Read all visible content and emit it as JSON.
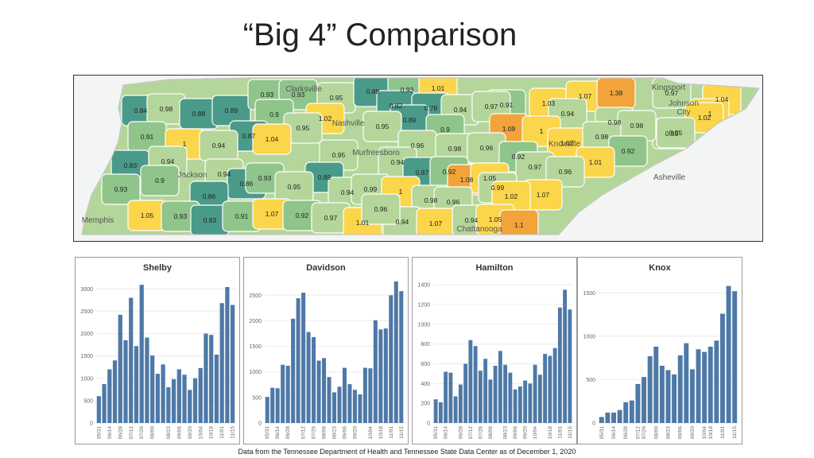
{
  "title": "“Big 4” Comparison",
  "footnote": "Data from the Tennessee Department of Health and Tennessee State Data Center as of December 1, 2020",
  "colors": {
    "bar": "#4e79a7",
    "map_teal": "#4a9a8a",
    "map_green": "#8fc48a",
    "map_lightgreen": "#b4d69a",
    "map_yellow": "#fbd54a",
    "map_orange": "#f2a33a",
    "map_background": "#f3f4f4"
  },
  "map": {
    "cities": [
      "Clarksville",
      "Nashville",
      "Murfreesboro",
      "Jackson",
      "Memphis",
      "Chattanooga",
      "Knoxville",
      "Kingsport",
      "Johnson City",
      "Asheville"
    ],
    "county_values": [
      "0.84",
      "0.98",
      "0.88",
      "0.89",
      "0.93",
      "0.93",
      "0.95",
      "0.88",
      "0.93",
      "1.01",
      "0.91",
      "1.03",
      "1.07",
      "1.38",
      "0.97",
      "1.04",
      "0.9",
      "1.02",
      "0.82",
      "0.78",
      "0.94",
      "0.97",
      "0.94",
      "1",
      "0.89",
      "1.02",
      "0.95",
      "0.91",
      "0.87",
      "0.95",
      "0.95",
      "0.9",
      "1.09",
      "1",
      "0.98",
      "0.98",
      "0.95",
      "1",
      "0.94",
      "1.04",
      "0.96",
      "0.98",
      "0.96",
      "1.02",
      "0.98",
      "0.92",
      "0.83",
      "0.94",
      "0.95",
      "0.94",
      "0.92",
      "0.97",
      "1.01",
      "0.9",
      "0.94",
      "0.86",
      "0.93",
      "0.89",
      "0.87",
      "0.92",
      "1.08",
      "1.05",
      "0.96",
      "0.93",
      "0.95",
      "0.94",
      "0.99",
      "1",
      "0.99",
      "1.07",
      "0.86",
      "0.98",
      "0.96",
      "1.02",
      "1.05",
      "0.93",
      "0.83",
      "0.91",
      "1.07",
      "0.92",
      "0.97",
      "1.01",
      "0.94",
      "1.07",
      "0.94",
      "1.05",
      "1.1",
      "0.96"
    ]
  },
  "chart_data": [
    {
      "type": "bar",
      "title": "Shelby",
      "x_ticks": [
        "05/31",
        "06/14",
        "06/28",
        "07/12",
        "07/26",
        "08/09",
        "08/23",
        "09/06",
        "09/20",
        "10/04",
        "10/18",
        "11/01",
        "11/15"
      ],
      "values": [
        600,
        870,
        1200,
        1400,
        2420,
        1850,
        2800,
        1720,
        3090,
        1910,
        1510,
        1100,
        1310,
        800,
        980,
        1200,
        1080,
        740,
        1000,
        1230,
        2000,
        1970,
        1530,
        2680,
        3040,
        2640
      ],
      "ylim": [
        0,
        3200
      ],
      "y_ticks": [
        0,
        500,
        1000,
        1500,
        2000,
        2500,
        3000
      ]
    },
    {
      "type": "bar",
      "title": "Davidson",
      "x_ticks": [
        "05/31",
        "06/14",
        "06/28",
        "07/12",
        "07/26",
        "08/09",
        "08/23",
        "09/06",
        "09/20",
        "10/04",
        "10/18",
        "11/01",
        "11/15"
      ],
      "values": [
        510,
        690,
        680,
        1140,
        1120,
        2040,
        2440,
        2550,
        1780,
        1680,
        1220,
        1270,
        900,
        600,
        710,
        1080,
        760,
        650,
        560,
        1080,
        1070,
        2010,
        1830,
        1850,
        2500,
        2770,
        2580
      ],
      "ylim": [
        0,
        2800
      ],
      "y_ticks": [
        0,
        500,
        1000,
        1500,
        2000,
        2500
      ]
    },
    {
      "type": "bar",
      "title": "Hamilton",
      "x_ticks": [
        "05/31",
        "06/14",
        "06/28",
        "07/12",
        "07/26",
        "08/09",
        "08/23",
        "09/06",
        "09/20",
        "10/04",
        "10/18",
        "11/01",
        "11/15"
      ],
      "values": [
        240,
        210,
        520,
        510,
        270,
        390,
        600,
        840,
        780,
        530,
        650,
        440,
        580,
        730,
        590,
        510,
        340,
        370,
        430,
        400,
        590,
        490,
        700,
        680,
        760,
        1170,
        1350,
        1150
      ],
      "ylim": [
        0,
        1450
      ],
      "y_ticks": [
        0,
        200,
        400,
        600,
        800,
        1000,
        1200,
        1400
      ]
    },
    {
      "type": "bar",
      "title": "Knox",
      "x_ticks": [
        "05/31",
        "06/14",
        "06/28",
        "07/12",
        "07/26",
        "08/09",
        "08/23",
        "09/06",
        "09/20",
        "10/04",
        "10/18",
        "11/01",
        "11/15"
      ],
      "values": [
        70,
        120,
        120,
        150,
        240,
        260,
        450,
        530,
        770,
        880,
        660,
        610,
        560,
        780,
        920,
        620,
        850,
        820,
        880,
        950,
        1260,
        1580,
        1520
      ],
      "ylim": [
        0,
        1650
      ],
      "y_ticks": [
        0,
        500,
        1000,
        1500
      ]
    }
  ]
}
